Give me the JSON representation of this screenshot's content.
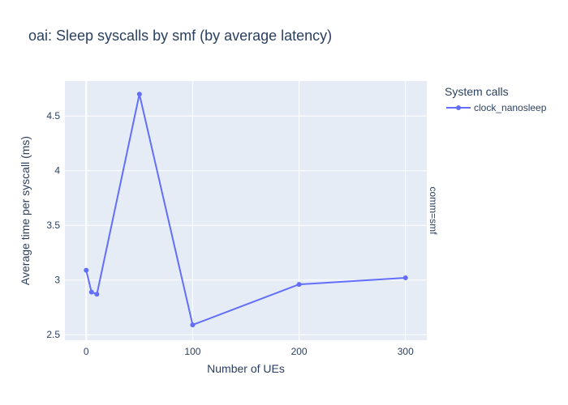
{
  "chart_data": {
    "type": "line",
    "title": "oai: Sleep syscalls by smf (by average latency)",
    "xlabel": "Number of UEs",
    "ylabel": "Average time per syscall (ms)",
    "facet_label": "comm=smf",
    "legend_title": "System calls",
    "legend_placement": "right",
    "grid": true,
    "xlim": [
      -20,
      320
    ],
    "ylim": [
      2.45,
      4.82
    ],
    "x_ticks": [
      0,
      100,
      200,
      300
    ],
    "x_tick_labels": [
      "0",
      "100",
      "200",
      "300"
    ],
    "y_ticks": [
      2.5,
      3,
      3.5,
      4,
      4.5
    ],
    "y_tick_labels": [
      "2.5",
      "3",
      "3.5",
      "4",
      "4.5"
    ],
    "series": [
      {
        "name": "clock_nanosleep",
        "color": "#636efa",
        "x": [
          0,
          5,
          10,
          50,
          100,
          200,
          300
        ],
        "y": [
          3.09,
          2.89,
          2.87,
          4.7,
          2.59,
          2.96,
          3.02
        ]
      }
    ]
  }
}
